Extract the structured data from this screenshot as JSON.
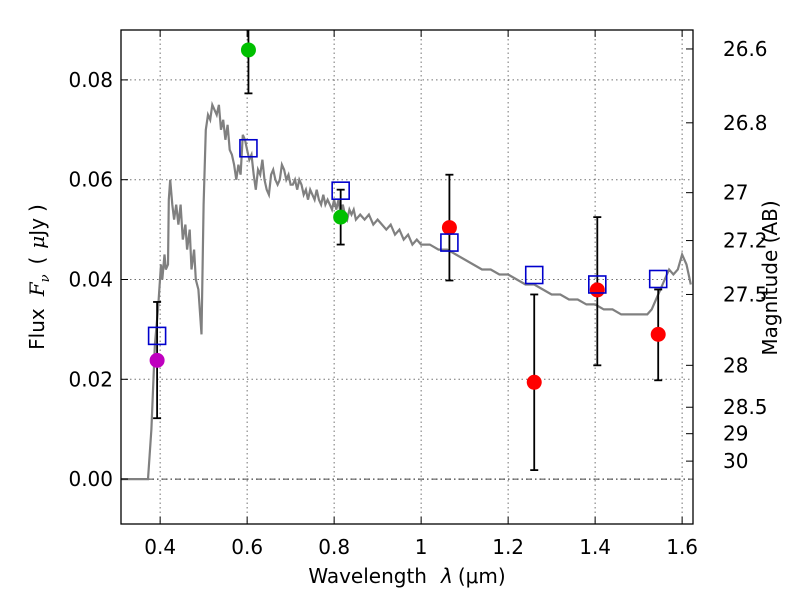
{
  "chart_data": {
    "type": "scatter",
    "xlabel_prefix": "Wavelength",
    "xlabel_lambda": "λ",
    "xlabel_unit": "(μm)",
    "ylabel_prefix": "Flux",
    "ylabel_symbol_f": "F",
    "ylabel_symbol_nu": "ν",
    "ylabel_unit_open": "(",
    "ylabel_unit_mu": "μ",
    "ylabel_unit_jy": "Jy",
    "ylabel_unit_close": ")",
    "ylabel_right": "Magnitude (AB)",
    "xlim": [
      0.31,
      1.625
    ],
    "ylim": [
      -0.009,
      0.09
    ],
    "grid": true,
    "x_ticks": [
      {
        "value": 0.4,
        "label": "0.4"
      },
      {
        "value": 0.6,
        "label": "0.6"
      },
      {
        "value": 0.8,
        "label": "0.8"
      },
      {
        "value": 1.0,
        "label": "1"
      },
      {
        "value": 1.2,
        "label": "1.2"
      },
      {
        "value": 1.4,
        "label": "1.4"
      },
      {
        "value": 1.6,
        "label": "1.6"
      }
    ],
    "y_ticks": [
      {
        "value": 0.0,
        "label": "0.00"
      },
      {
        "value": 0.02,
        "label": "0.02"
      },
      {
        "value": 0.04,
        "label": "0.04"
      },
      {
        "value": 0.06,
        "label": "0.06"
      },
      {
        "value": 0.08,
        "label": "0.08"
      }
    ],
    "mag_ticks": [
      {
        "flux": 0.0862,
        "label": "26.6"
      },
      {
        "flux": 0.0714,
        "label": "26.8"
      },
      {
        "flux": 0.0574,
        "label": "27"
      },
      {
        "flux": 0.0478,
        "label": "27.2"
      },
      {
        "flux": 0.037,
        "label": "27.5"
      },
      {
        "flux": 0.0228,
        "label": "28"
      },
      {
        "flux": 0.0144,
        "label": "28.5"
      },
      {
        "flux": 0.0091,
        "label": "29"
      },
      {
        "flux": 0.0036,
        "label": "30"
      }
    ],
    "observed_points": [
      {
        "x": 0.393,
        "y": 0.0238,
        "err_low": 0.0122,
        "err_high": 0.0355,
        "color": "#bf00bf"
      },
      {
        "x": 0.603,
        "y": 0.086,
        "err_low": 0.0773,
        "err_high": 0.0905,
        "color": "#00c000"
      },
      {
        "x": 0.815,
        "y": 0.0525,
        "err_low": 0.047,
        "err_high": 0.058,
        "color": "#00c000"
      },
      {
        "x": 1.065,
        "y": 0.0504,
        "err_low": 0.0398,
        "err_high": 0.061,
        "color": "#ff0000"
      },
      {
        "x": 1.26,
        "y": 0.0194,
        "err_low": 0.0018,
        "err_high": 0.037,
        "color": "#ff0000"
      },
      {
        "x": 1.405,
        "y": 0.0379,
        "err_low": 0.0228,
        "err_high": 0.0525,
        "color": "#ff0000"
      },
      {
        "x": 1.545,
        "y": 0.029,
        "err_low": 0.0198,
        "err_high": 0.038,
        "color": "#ff0000"
      }
    ],
    "model_points": [
      {
        "x": 0.393,
        "y": 0.0287
      },
      {
        "x": 0.603,
        "y": 0.0663
      },
      {
        "x": 0.815,
        "y": 0.0578
      },
      {
        "x": 1.065,
        "y": 0.0474
      },
      {
        "x": 1.26,
        "y": 0.0409
      },
      {
        "x": 1.405,
        "y": 0.039
      },
      {
        "x": 1.545,
        "y": 0.0401
      }
    ],
    "model_spectrum": [
      [
        0.31,
        0.0
      ],
      [
        0.372,
        0.0
      ],
      [
        0.38,
        0.01
      ],
      [
        0.388,
        0.027
      ],
      [
        0.395,
        0.034
      ],
      [
        0.402,
        0.043
      ],
      [
        0.405,
        0.04
      ],
      [
        0.41,
        0.045
      ],
      [
        0.413,
        0.042
      ],
      [
        0.418,
        0.043
      ],
      [
        0.42,
        0.056
      ],
      [
        0.423,
        0.06
      ],
      [
        0.428,
        0.055
      ],
      [
        0.432,
        0.052
      ],
      [
        0.437,
        0.055
      ],
      [
        0.442,
        0.051
      ],
      [
        0.447,
        0.055
      ],
      [
        0.452,
        0.048
      ],
      [
        0.458,
        0.051
      ],
      [
        0.462,
        0.046
      ],
      [
        0.468,
        0.05
      ],
      [
        0.472,
        0.042
      ],
      [
        0.478,
        0.046
      ],
      [
        0.482,
        0.04
      ],
      [
        0.488,
        0.038
      ],
      [
        0.495,
        0.029
      ],
      [
        0.5,
        0.055
      ],
      [
        0.505,
        0.07
      ],
      [
        0.51,
        0.073
      ],
      [
        0.515,
        0.072
      ],
      [
        0.52,
        0.075
      ],
      [
        0.525,
        0.074
      ],
      [
        0.53,
        0.073
      ],
      [
        0.535,
        0.075
      ],
      [
        0.54,
        0.07
      ],
      [
        0.545,
        0.072
      ],
      [
        0.55,
        0.068
      ],
      [
        0.555,
        0.071
      ],
      [
        0.56,
        0.066
      ],
      [
        0.565,
        0.065
      ],
      [
        0.57,
        0.063
      ],
      [
        0.575,
        0.06
      ],
      [
        0.58,
        0.063
      ],
      [
        0.585,
        0.061
      ],
      [
        0.59,
        0.069
      ],
      [
        0.595,
        0.068
      ],
      [
        0.6,
        0.066
      ],
      [
        0.605,
        0.064
      ],
      [
        0.61,
        0.065
      ],
      [
        0.615,
        0.061
      ],
      [
        0.62,
        0.058
      ],
      [
        0.625,
        0.062
      ],
      [
        0.63,
        0.061
      ],
      [
        0.635,
        0.064
      ],
      [
        0.64,
        0.06
      ],
      [
        0.645,
        0.058
      ],
      [
        0.65,
        0.057
      ],
      [
        0.655,
        0.061
      ],
      [
        0.66,
        0.062
      ],
      [
        0.665,
        0.06
      ],
      [
        0.67,
        0.059
      ],
      [
        0.675,
        0.06
      ],
      [
        0.68,
        0.063
      ],
      [
        0.685,
        0.062
      ],
      [
        0.69,
        0.06
      ],
      [
        0.695,
        0.061
      ],
      [
        0.7,
        0.059
      ],
      [
        0.705,
        0.059
      ],
      [
        0.71,
        0.06
      ],
      [
        0.715,
        0.058
      ],
      [
        0.72,
        0.06
      ],
      [
        0.725,
        0.059
      ],
      [
        0.73,
        0.057
      ],
      [
        0.735,
        0.058
      ],
      [
        0.74,
        0.056
      ],
      [
        0.745,
        0.058
      ],
      [
        0.75,
        0.057
      ],
      [
        0.755,
        0.056
      ],
      [
        0.76,
        0.058
      ],
      [
        0.765,
        0.056
      ],
      [
        0.77,
        0.055
      ],
      [
        0.775,
        0.057
      ],
      [
        0.78,
        0.055
      ],
      [
        0.785,
        0.056
      ],
      [
        0.79,
        0.055
      ],
      [
        0.795,
        0.054
      ],
      [
        0.8,
        0.056
      ],
      [
        0.805,
        0.054
      ],
      [
        0.81,
        0.056
      ],
      [
        0.815,
        0.053
      ],
      [
        0.82,
        0.055
      ],
      [
        0.825,
        0.053
      ],
      [
        0.83,
        0.052
      ],
      [
        0.835,
        0.054
      ],
      [
        0.84,
        0.053
      ],
      [
        0.845,
        0.054
      ],
      [
        0.85,
        0.052
      ],
      [
        0.86,
        0.053
      ],
      [
        0.87,
        0.052
      ],
      [
        0.88,
        0.053
      ],
      [
        0.89,
        0.051
      ],
      [
        0.9,
        0.052
      ],
      [
        0.91,
        0.051
      ],
      [
        0.92,
        0.05
      ],
      [
        0.93,
        0.051
      ],
      [
        0.94,
        0.049
      ],
      [
        0.95,
        0.05
      ],
      [
        0.96,
        0.048
      ],
      [
        0.97,
        0.049
      ],
      [
        0.98,
        0.047
      ],
      [
        0.99,
        0.048
      ],
      [
        1.0,
        0.047
      ],
      [
        1.02,
        0.047
      ],
      [
        1.04,
        0.046
      ],
      [
        1.06,
        0.046
      ],
      [
        1.08,
        0.045
      ],
      [
        1.1,
        0.044
      ],
      [
        1.12,
        0.043
      ],
      [
        1.14,
        0.042
      ],
      [
        1.16,
        0.042
      ],
      [
        1.18,
        0.041
      ],
      [
        1.2,
        0.041
      ],
      [
        1.22,
        0.04
      ],
      [
        1.24,
        0.039
      ],
      [
        1.26,
        0.039
      ],
      [
        1.28,
        0.038
      ],
      [
        1.3,
        0.037
      ],
      [
        1.32,
        0.037
      ],
      [
        1.34,
        0.036
      ],
      [
        1.36,
        0.036
      ],
      [
        1.38,
        0.035
      ],
      [
        1.4,
        0.035
      ],
      [
        1.42,
        0.034
      ],
      [
        1.44,
        0.034
      ],
      [
        1.46,
        0.033
      ],
      [
        1.48,
        0.033
      ],
      [
        1.5,
        0.033
      ],
      [
        1.52,
        0.033
      ],
      [
        1.53,
        0.034
      ],
      [
        1.54,
        0.036
      ],
      [
        1.55,
        0.038
      ],
      [
        1.56,
        0.04
      ],
      [
        1.57,
        0.042
      ],
      [
        1.58,
        0.041
      ],
      [
        1.59,
        0.042
      ],
      [
        1.6,
        0.045
      ],
      [
        1.61,
        0.043
      ],
      [
        1.62,
        0.039
      ]
    ],
    "colors": {
      "model_line": "#808080",
      "model_marker": "#0000cc",
      "errorbar": "#000000",
      "zero_line": "#000000"
    }
  }
}
